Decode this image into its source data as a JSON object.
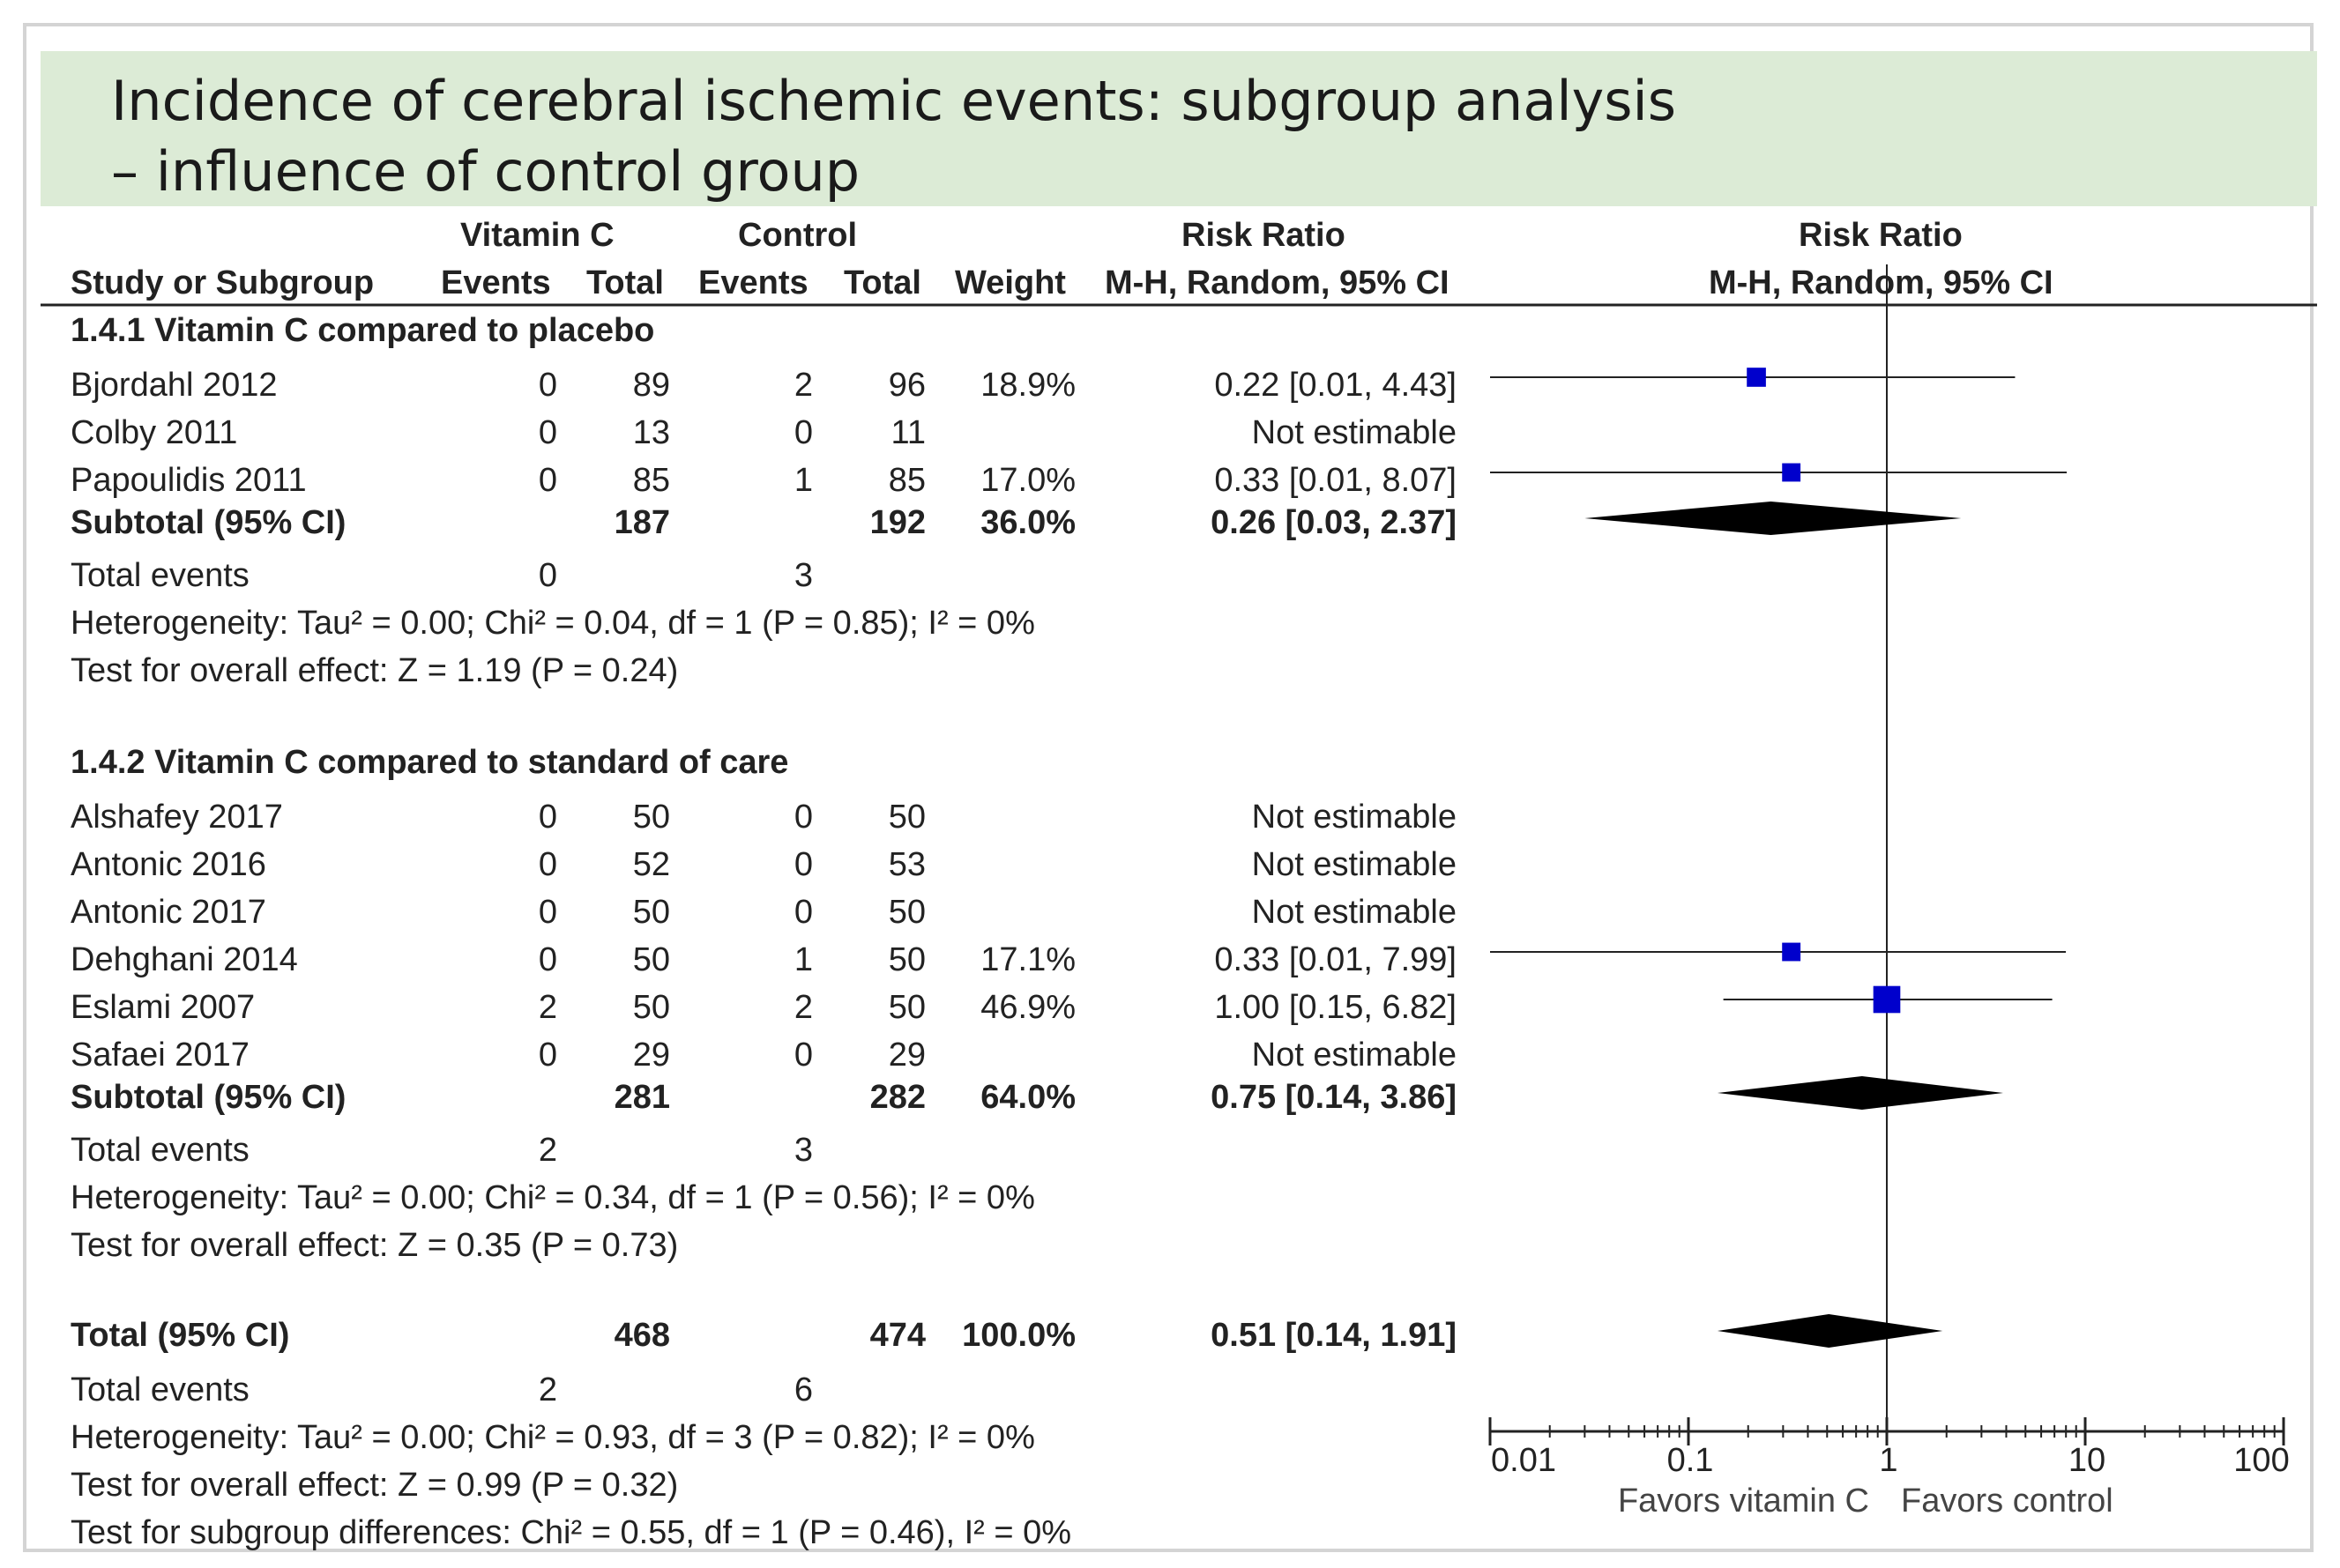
{
  "title": {
    "line1": "Incidence of cerebral ischemic events: subgroup analysis",
    "line2": "– influence of control group"
  },
  "headers": {
    "vitc_group": "Vitamin C",
    "control_group": "Control",
    "risk_ratio": "Risk Ratio",
    "study": "Study or Subgroup",
    "events": "Events",
    "total": "Total",
    "weight": "Weight",
    "method_ci": "M-H, Random, 95% CI",
    "plot_risk_ratio": "Risk Ratio",
    "plot_method_ci": "M-H, Random, 95% CI"
  },
  "colors": {
    "study_square": "#0000cc",
    "diamond": "#000000",
    "title_band": "#dcebd6"
  },
  "chart_data": {
    "type": "forest",
    "scale": "log",
    "xlim": [
      0.01,
      100
    ],
    "x_ticks": [
      "0.01",
      "0.1",
      "1",
      "10",
      "100"
    ],
    "x_tick_values": [
      0.01,
      0.1,
      1,
      10,
      100
    ],
    "null_line": 1,
    "favors_left": "Favors vitamin C",
    "favors_right": "Favors control",
    "subgroups": [
      {
        "heading": "1.4.1 Vitamin C compared to placebo",
        "studies": [
          {
            "name": "Bjordahl 2012",
            "vitc_events": "0",
            "vitc_total": "89",
            "ctrl_events": "2",
            "ctrl_total": "96",
            "weight": "18.9%",
            "ci_text": "0.22 [0.01, 4.43]",
            "rr": 0.22,
            "lo": 0.01,
            "hi": 4.43,
            "w": 18.9
          },
          {
            "name": "Colby 2011",
            "vitc_events": "0",
            "vitc_total": "13",
            "ctrl_events": "0",
            "ctrl_total": "11",
            "weight": "",
            "ci_text": "Not estimable",
            "rr": null,
            "lo": null,
            "hi": null,
            "w": 0
          },
          {
            "name": "Papoulidis 2011",
            "vitc_events": "0",
            "vitc_total": "85",
            "ctrl_events": "1",
            "ctrl_total": "85",
            "weight": "17.0%",
            "ci_text": "0.33 [0.01, 8.07]",
            "rr": 0.33,
            "lo": 0.01,
            "hi": 8.07,
            "w": 17.0
          }
        ],
        "subtotal": {
          "label": "Subtotal (95% CI)",
          "vitc_total": "187",
          "ctrl_total": "192",
          "weight": "36.0%",
          "ci_text": "0.26 [0.03, 2.37]",
          "rr": 0.26,
          "lo": 0.03,
          "hi": 2.37
        },
        "total_events": {
          "label": "Total events",
          "vitc": "0",
          "ctrl": "3"
        },
        "heterogeneity": "Heterogeneity: Tau² = 0.00; Chi² = 0.04, df = 1 (P = 0.85); I² = 0%",
        "overall_effect": "Test for overall effect: Z = 1.19 (P = 0.24)"
      },
      {
        "heading": "1.4.2 Vitamin C compared to standard of care",
        "studies": [
          {
            "name": "Alshafey 2017",
            "vitc_events": "0",
            "vitc_total": "50",
            "ctrl_events": "0",
            "ctrl_total": "50",
            "weight": "",
            "ci_text": "Not estimable",
            "rr": null,
            "lo": null,
            "hi": null,
            "w": 0
          },
          {
            "name": "Antonic 2016",
            "vitc_events": "0",
            "vitc_total": "52",
            "ctrl_events": "0",
            "ctrl_total": "53",
            "weight": "",
            "ci_text": "Not estimable",
            "rr": null,
            "lo": null,
            "hi": null,
            "w": 0
          },
          {
            "name": "Antonic 2017",
            "vitc_events": "0",
            "vitc_total": "50",
            "ctrl_events": "0",
            "ctrl_total": "50",
            "weight": "",
            "ci_text": "Not estimable",
            "rr": null,
            "lo": null,
            "hi": null,
            "w": 0
          },
          {
            "name": "Dehghani 2014",
            "vitc_events": "0",
            "vitc_total": "50",
            "ctrl_events": "1",
            "ctrl_total": "50",
            "weight": "17.1%",
            "ci_text": "0.33 [0.01, 7.99]",
            "rr": 0.33,
            "lo": 0.01,
            "hi": 7.99,
            "w": 17.1
          },
          {
            "name": "Eslami 2007",
            "vitc_events": "2",
            "vitc_total": "50",
            "ctrl_events": "2",
            "ctrl_total": "50",
            "weight": "46.9%",
            "ci_text": "1.00 [0.15, 6.82]",
            "rr": 1.0,
            "lo": 0.15,
            "hi": 6.82,
            "w": 46.9
          },
          {
            "name": "Safaei 2017",
            "vitc_events": "0",
            "vitc_total": "29",
            "ctrl_events": "0",
            "ctrl_total": "29",
            "weight": "",
            "ci_text": "Not estimable",
            "rr": null,
            "lo": null,
            "hi": null,
            "w": 0
          }
        ],
        "subtotal": {
          "label": "Subtotal (95% CI)",
          "vitc_total": "281",
          "ctrl_total": "282",
          "weight": "64.0%",
          "ci_text": "0.75 [0.14, 3.86]",
          "rr": 0.75,
          "lo": 0.14,
          "hi": 3.86
        },
        "total_events": {
          "label": "Total events",
          "vitc": "2",
          "ctrl": "3"
        },
        "heterogeneity": "Heterogeneity: Tau² = 0.00; Chi² = 0.34, df = 1 (P = 0.56); I² = 0%",
        "overall_effect": "Test for overall effect: Z = 0.35 (P = 0.73)"
      }
    ],
    "total": {
      "label": "Total (95% CI)",
      "vitc_total": "468",
      "ctrl_total": "474",
      "weight": "100.0%",
      "ci_text": "0.51 [0.14, 1.91]",
      "rr": 0.51,
      "lo": 0.14,
      "hi": 1.91
    },
    "total_events": {
      "label": "Total events",
      "vitc": "2",
      "ctrl": "6"
    },
    "heterogeneity": "Heterogeneity: Tau² = 0.00; Chi² = 0.93, df = 3 (P = 0.82); I² = 0%",
    "overall_effect": "Test for overall effect: Z = 0.99 (P = 0.32)",
    "subgroup_differences": "Test for subgroup differences: Chi² = 0.55, df = 1 (P = 0.46), I² = 0%"
  }
}
